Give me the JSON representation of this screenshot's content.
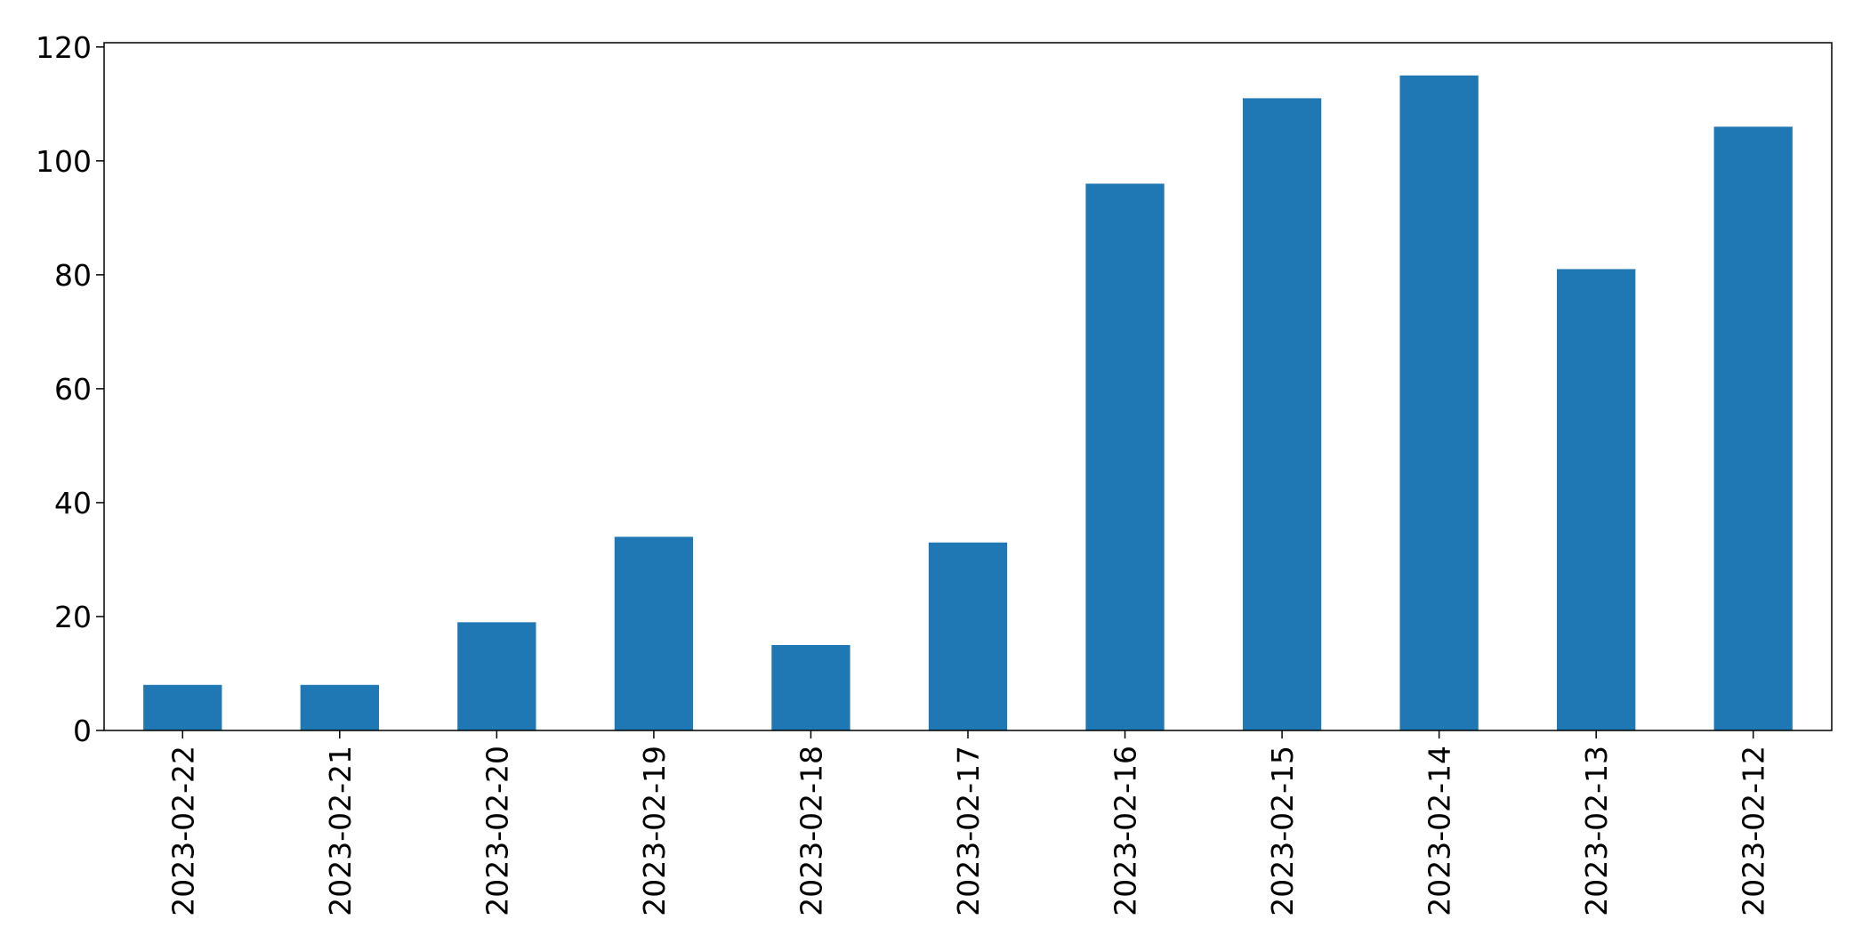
{
  "chart_data": {
    "type": "bar",
    "title": "",
    "xlabel": "",
    "ylabel": "",
    "categories": [
      "2023-02-22",
      "2023-02-21",
      "2023-02-20",
      "2023-02-19",
      "2023-02-18",
      "2023-02-17",
      "2023-02-16",
      "2023-02-15",
      "2023-02-14",
      "2023-02-13",
      "2023-02-12"
    ],
    "values": [
      8,
      8,
      19,
      34,
      15,
      33,
      96,
      111,
      115,
      81,
      106
    ],
    "ylim": [
      0,
      120.75
    ],
    "yticks": [
      0,
      20,
      40,
      60,
      80,
      100,
      120
    ],
    "bar_color": "#1f77b4",
    "grid": false,
    "legend": "none"
  }
}
